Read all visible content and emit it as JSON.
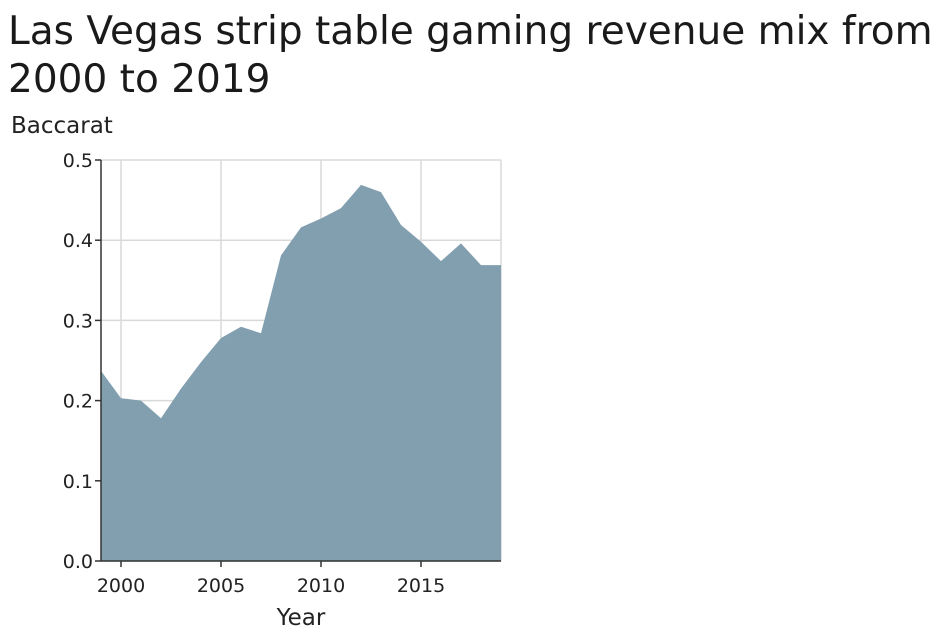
{
  "chart_data": {
    "type": "area",
    "title": "Las Vegas strip table gaming revenue mix from 2000 to 2019",
    "xlabel": "Year",
    "ylabel": "Baccarat",
    "xlim": [
      1999,
      2019
    ],
    "ylim": [
      0,
      0.5
    ],
    "x_ticks": [
      2000,
      2005,
      2010,
      2015
    ],
    "y_ticks": [
      0.0,
      0.1,
      0.2,
      0.3,
      0.4,
      0.5
    ],
    "y_tick_labels": [
      "0.0",
      "0.1",
      "0.2",
      "0.3",
      "0.4",
      "0.5"
    ],
    "grid": true,
    "legend": "none",
    "fill_color": "#829fb0",
    "x": [
      1999,
      2000,
      2001,
      2002,
      2003,
      2004,
      2005,
      2006,
      2007,
      2008,
      2009,
      2010,
      2011,
      2012,
      2013,
      2014,
      2015,
      2016,
      2017,
      2018,
      2019
    ],
    "values": [
      0.237,
      0.203,
      0.2,
      0.178,
      0.215,
      0.248,
      0.278,
      0.292,
      0.284,
      0.381,
      0.416,
      0.427,
      0.44,
      0.469,
      0.46,
      0.419,
      0.398,
      0.374,
      0.396,
      0.369,
      0.369
    ]
  }
}
